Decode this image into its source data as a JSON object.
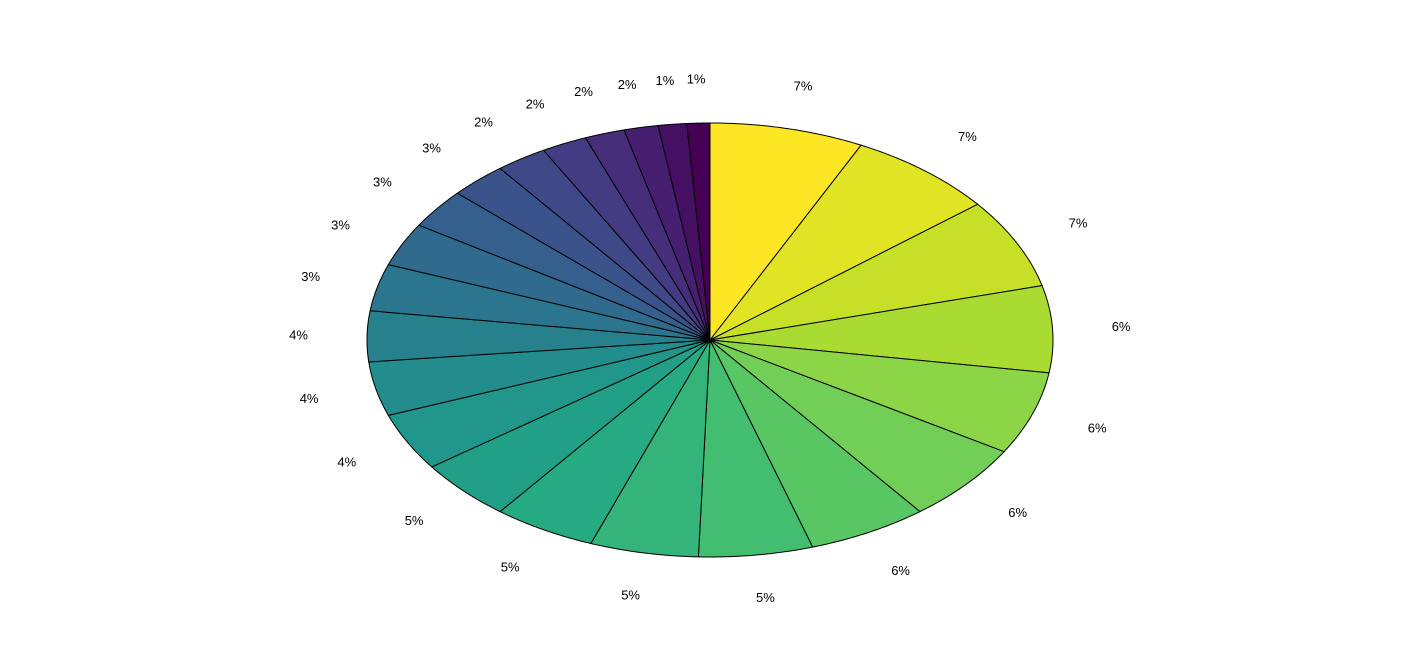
{
  "chart_data": {
    "type": "pie",
    "title": "",
    "colormap": "viridis (reversed: first slice yellow, last slice dark purple)",
    "start": "top",
    "direction": "clockwise",
    "values": [
      27,
      26,
      25,
      24,
      23,
      22,
      21,
      20,
      19,
      18,
      17,
      16,
      15,
      14,
      13,
      12,
      11,
      10,
      9,
      8,
      7,
      6,
      5,
      4
    ],
    "labels": [
      "7%",
      "7%",
      "7%",
      "6%",
      "6%",
      "6%",
      "6%",
      "5%",
      "5%",
      "5%",
      "5%",
      "4%",
      "4%",
      "4%",
      "3%",
      "3%",
      "3%",
      "3%",
      "2%",
      "2%",
      "2%",
      "2%",
      "1%",
      "1%"
    ],
    "edge_color": "#000000"
  }
}
